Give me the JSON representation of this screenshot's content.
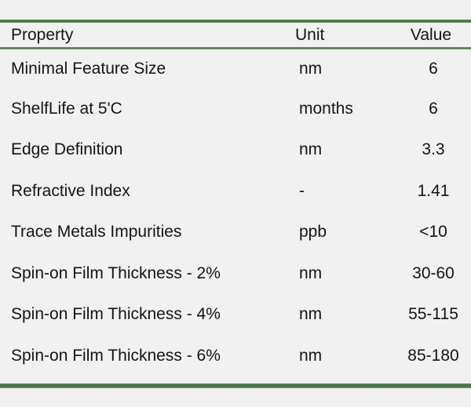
{
  "table": {
    "headers": {
      "property": "Property",
      "unit": "Unit",
      "value": "Value"
    },
    "rows": [
      {
        "property": "Minimal Feature Size",
        "unit": "nm",
        "value": "6"
      },
      {
        "property": "ShelfLife at 5'C",
        "unit": "months",
        "value": "6"
      },
      {
        "property": "Edge Definition",
        "unit": "nm",
        "value": "3.3"
      },
      {
        "property": "Refractive Index",
        "unit": "-",
        "value": "1.41"
      },
      {
        "property": "Trace Metals Impurities",
        "unit": "ppb",
        "value": "<10"
      },
      {
        "property": "Spin-on Film Thickness - 2%",
        "unit": "nm",
        "value": "30-60"
      },
      {
        "property": "Spin-on Film Thickness - 4%",
        "unit": "nm",
        "value": "55-115"
      },
      {
        "property": "Spin-on Film Thickness - 6%",
        "unit": "nm",
        "value": "85-180"
      }
    ]
  },
  "colors": {
    "background": "#f0f1f0",
    "rule_green": "#4a7a48",
    "text": "#141414"
  }
}
